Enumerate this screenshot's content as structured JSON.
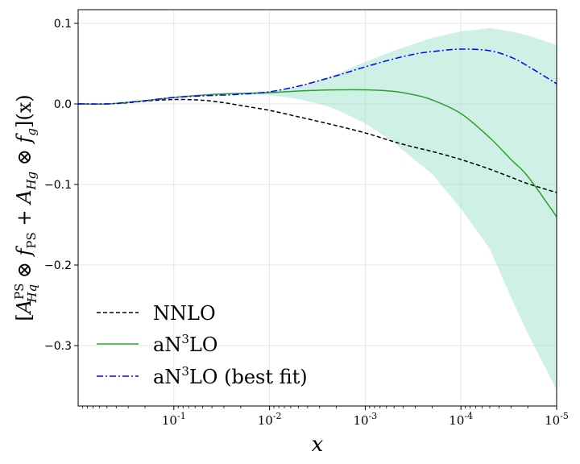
{
  "chart_data": {
    "type": "line",
    "xscale": "log",
    "xaxis_reversed": true,
    "xlabel": "x",
    "ylabel_parts": {
      "open": "[",
      "A": "A",
      "ps": "PS",
      "hq": "Hq",
      "otimes1": " ⊗ ",
      "f": "f",
      "fps_sub": "PS",
      "plus": " + ",
      "A2": "A",
      "hg": "Hg",
      "otimes2": " ⊗ ",
      "f2": "f",
      "g": "g",
      "close": "](x)"
    },
    "xlim": [
      1,
      1e-05
    ],
    "ylim": [
      -0.375,
      0.117
    ],
    "grid": true,
    "legend_position": "lower-left",
    "xticks": [
      {
        "value": 0.1,
        "base": "10",
        "exp": "-1"
      },
      {
        "value": 0.01,
        "base": "10",
        "exp": "-2"
      },
      {
        "value": 0.001,
        "base": "10",
        "exp": "-3"
      },
      {
        "value": 0.0001,
        "base": "10",
        "exp": "-4"
      },
      {
        "value": 1e-05,
        "base": "10",
        "exp": "-5"
      }
    ],
    "yticks": [
      {
        "value": 0.1,
        "label": "0.1"
      },
      {
        "value": 0.0,
        "label": "0.0"
      },
      {
        "value": -0.1,
        "label": "−0.1"
      },
      {
        "value": -0.2,
        "label": "−0.2"
      },
      {
        "value": -0.3,
        "label": "−0.3"
      }
    ],
    "x": [
      1,
      0.5,
      0.3,
      0.2,
      0.1,
      0.05,
      0.03,
      0.02,
      0.01,
      0.005,
      0.003,
      0.002,
      0.001,
      0.0005,
      0.0003,
      0.0002,
      0.0001,
      5e-05,
      3e-05,
      2e-05,
      1e-05
    ],
    "series": [
      {
        "name": "NNLO",
        "legend_label": "NNLO",
        "style": "dashed",
        "color": "#000000",
        "values": [
          0.0,
          0.0,
          0.0015,
          0.0035,
          0.0055,
          0.0045,
          0.0015,
          -0.002,
          -0.008,
          -0.016,
          -0.022,
          -0.027,
          -0.036,
          -0.047,
          -0.054,
          -0.059,
          -0.069,
          -0.081,
          -0.091,
          -0.099,
          -0.11
        ]
      },
      {
        "name": "aN3LO",
        "legend_base": "aN",
        "legend_sup": "3",
        "legend_rest": "LO",
        "style": "solid",
        "color": "#2ca02c",
        "values": [
          0.0,
          0.0,
          0.002,
          0.004,
          0.008,
          0.011,
          0.0125,
          0.013,
          0.014,
          0.016,
          0.017,
          0.0175,
          0.0175,
          0.0155,
          0.011,
          0.005,
          -0.012,
          -0.042,
          -0.069,
          -0.09,
          -0.14
        ]
      },
      {
        "name": "aN3LO (best fit)",
        "legend_base": "aN",
        "legend_sup": "3",
        "legend_rest": "LO (best fit)",
        "style": "dashdot",
        "color": "#0000ff",
        "values": [
          0.0,
          0.0,
          0.002,
          0.004,
          0.008,
          0.01,
          0.011,
          0.012,
          0.015,
          0.022,
          0.029,
          0.035,
          0.046,
          0.056,
          0.062,
          0.065,
          0.068,
          0.066,
          0.058,
          0.047,
          0.025
        ]
      }
    ],
    "band": {
      "color": "#a8e4cf",
      "upper": [
        0.0,
        0.0,
        0.002,
        0.004,
        0.008,
        0.011,
        0.013,
        0.014,
        0.016,
        0.022,
        0.03,
        0.037,
        0.052,
        0.066,
        0.075,
        0.082,
        0.09,
        0.094,
        0.09,
        0.085,
        0.073
      ],
      "lower": [
        0.0,
        0.0,
        0.002,
        0.004,
        0.008,
        0.011,
        0.0125,
        0.012,
        0.011,
        0.006,
        0.0,
        -0.007,
        -0.024,
        -0.048,
        -0.07,
        -0.087,
        -0.13,
        -0.18,
        -0.24,
        -0.285,
        -0.355
      ]
    }
  }
}
